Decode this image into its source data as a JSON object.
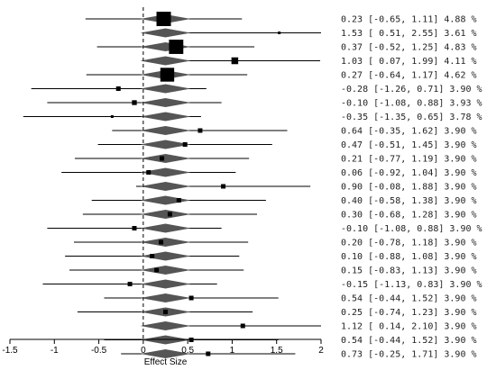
{
  "chart_data": {
    "type": "forest",
    "xlabel": "Effect Size",
    "xlim": [
      -1.5,
      2
    ],
    "xticks": [
      -1.5,
      -1,
      -0.5,
      0,
      0.5,
      1,
      1.5,
      2
    ],
    "xtick_labels": [
      "-1.5",
      "-1",
      "-0.5",
      "0",
      "0.5",
      "1",
      "1.5",
      "2"
    ],
    "reference_line": 0,
    "studies": [
      {
        "est": 0.23,
        "lo": -0.65,
        "hi": 1.11,
        "weight": 4.88,
        "label": "0.23 [-0.65, 1.11]  4.88 %",
        "pooled": 0.25
      },
      {
        "est": 1.53,
        "lo": 0.51,
        "hi": 2.55,
        "weight": 3.61,
        "label": "1.53 [ 0.51, 2.55]  3.61 %",
        "pooled": 0.25
      },
      {
        "est": 0.37,
        "lo": -0.52,
        "hi": 1.25,
        "weight": 4.83,
        "label": "0.37 [-0.52, 1.25]  4.83 %",
        "pooled": 0.25
      },
      {
        "est": 1.03,
        "lo": 0.07,
        "hi": 1.99,
        "weight": 4.11,
        "label": "1.03 [ 0.07, 1.99]  4.11 %",
        "pooled": 0.25
      },
      {
        "est": 0.27,
        "lo": -0.64,
        "hi": 1.17,
        "weight": 4.62,
        "label": "0.27 [-0.64, 1.17]  4.62 %",
        "pooled": 0.25
      },
      {
        "est": -0.28,
        "lo": -1.26,
        "hi": 0.71,
        "weight": 3.9,
        "label": "-0.28 [-1.26, 0.71]  3.90 %",
        "pooled": 0.25
      },
      {
        "est": -0.1,
        "lo": -1.08,
        "hi": 0.88,
        "weight": 3.93,
        "label": "-0.10 [-1.08, 0.88]  3.93 %",
        "pooled": 0.25
      },
      {
        "est": -0.35,
        "lo": -1.35,
        "hi": 0.65,
        "weight": 3.78,
        "label": "-0.35 [-1.35, 0.65]  3.78 %",
        "pooled": 0.25
      },
      {
        "est": 0.64,
        "lo": -0.35,
        "hi": 1.62,
        "weight": 3.9,
        "label": "0.64 [-0.35, 1.62]  3.90 %",
        "pooled": 0.25
      },
      {
        "est": 0.47,
        "lo": -0.51,
        "hi": 1.45,
        "weight": 3.9,
        "label": "0.47 [-0.51, 1.45]  3.90 %",
        "pooled": 0.25
      },
      {
        "est": 0.21,
        "lo": -0.77,
        "hi": 1.19,
        "weight": 3.9,
        "label": "0.21 [-0.77, 1.19]  3.90 %",
        "pooled": 0.25
      },
      {
        "est": 0.06,
        "lo": -0.92,
        "hi": 1.04,
        "weight": 3.9,
        "label": "0.06 [-0.92, 1.04]  3.90 %",
        "pooled": 0.25
      },
      {
        "est": 0.9,
        "lo": -0.08,
        "hi": 1.88,
        "weight": 3.9,
        "label": "0.90 [-0.08, 1.88]  3.90 %",
        "pooled": 0.25
      },
      {
        "est": 0.4,
        "lo": -0.58,
        "hi": 1.38,
        "weight": 3.9,
        "label": "0.40 [-0.58, 1.38]  3.90 %",
        "pooled": 0.25
      },
      {
        "est": 0.3,
        "lo": -0.68,
        "hi": 1.28,
        "weight": 3.9,
        "label": "0.30 [-0.68, 1.28]  3.90 %",
        "pooled": 0.25
      },
      {
        "est": -0.1,
        "lo": -1.08,
        "hi": 0.88,
        "weight": 3.9,
        "label": "-0.10 [-1.08, 0.88]  3.90 %",
        "pooled": 0.25
      },
      {
        "est": 0.2,
        "lo": -0.78,
        "hi": 1.18,
        "weight": 3.9,
        "label": "0.20 [-0.78, 1.18]  3.90 %",
        "pooled": 0.25
      },
      {
        "est": 0.1,
        "lo": -0.88,
        "hi": 1.08,
        "weight": 3.9,
        "label": "0.10 [-0.88, 1.08]  3.90 %",
        "pooled": 0.25
      },
      {
        "est": 0.15,
        "lo": -0.83,
        "hi": 1.13,
        "weight": 3.9,
        "label": "0.15 [-0.83, 1.13]  3.90 %",
        "pooled": 0.25
      },
      {
        "est": -0.15,
        "lo": -1.13,
        "hi": 0.83,
        "weight": 3.9,
        "label": "-0.15 [-1.13, 0.83]  3.90 %",
        "pooled": 0.25
      },
      {
        "est": 0.54,
        "lo": -0.44,
        "hi": 1.52,
        "weight": 3.9,
        "label": "0.54 [-0.44, 1.52]  3.90 %",
        "pooled": 0.25
      },
      {
        "est": 0.25,
        "lo": -0.74,
        "hi": 1.23,
        "weight": 3.9,
        "label": "0.25 [-0.74, 1.23]  3.90 %",
        "pooled": 0.25
      },
      {
        "est": 1.12,
        "lo": 0.14,
        "hi": 2.1,
        "weight": 3.9,
        "label": "1.12 [ 0.14, 2.10]  3.90 %",
        "pooled": 0.25
      },
      {
        "est": 0.54,
        "lo": -0.44,
        "hi": 1.52,
        "weight": 3.9,
        "label": "0.54 [-0.44, 1.52]  3.90 %",
        "pooled": 0.25
      },
      {
        "est": 0.73,
        "lo": -0.25,
        "hi": 1.71,
        "weight": 3.9,
        "label": "0.73 [-0.25, 1.71]  3.90 %",
        "pooled": 0.25
      }
    ]
  }
}
